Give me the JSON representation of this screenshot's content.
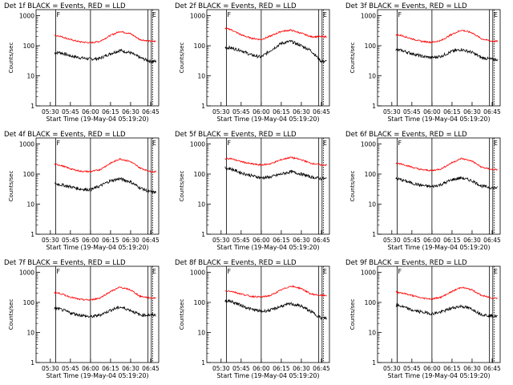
{
  "figure": {
    "ylabel": "Counts/sec",
    "xlabel_prefix": "Start Time",
    "start_time": "(19-May-04 05:19:20)",
    "x_ticks": [
      "05:30",
      "05:45",
      "06:00",
      "06:15",
      "06:30",
      "06:45"
    ],
    "y_ticks": [
      "1",
      "10",
      "100",
      "1000"
    ],
    "marker_label_F": "F",
    "marker_label_E": "E",
    "colors": {
      "events": "#000000",
      "lld": "#ff0000"
    }
  },
  "chart_data": [
    {
      "type": "line",
      "title": "Det 1f BLACK = Events, RED = LLD",
      "detector": "1f",
      "ylim": [
        1,
        1000
      ],
      "yscale": "log",
      "series": [
        {
          "name": "Events",
          "color": "#000000",
          "x": [
            "05:30",
            "05:37",
            "05:45",
            "05:52",
            "06:00",
            "06:07",
            "06:15",
            "06:22",
            "06:30",
            "06:37",
            "06:45"
          ],
          "values": [
            55,
            60,
            46,
            40,
            36,
            38,
            55,
            70,
            58,
            40,
            30
          ]
        },
        {
          "name": "LLD",
          "color": "#ff0000",
          "x": [
            "05:30",
            "05:37",
            "05:45",
            "05:52",
            "06:00",
            "06:07",
            "06:15",
            "06:22",
            "06:30",
            "06:37",
            "06:45"
          ],
          "values": [
            230,
            210,
            160,
            135,
            125,
            140,
            220,
            300,
            250,
            160,
            140
          ]
        }
      ]
    },
    {
      "type": "line",
      "title": "Det 2f BLACK = Events, RED = LLD",
      "detector": "2f",
      "ylim": [
        1,
        1000
      ],
      "yscale": "log",
      "series": [
        {
          "name": "Events",
          "color": "#000000",
          "x": [
            "05:30",
            "05:37",
            "05:45",
            "05:52",
            "06:00",
            "06:07",
            "06:15",
            "06:22",
            "06:30",
            "06:37",
            "06:45"
          ],
          "values": [
            90,
            85,
            70,
            50,
            42,
            70,
            120,
            140,
            100,
            70,
            30
          ]
        },
        {
          "name": "LLD",
          "color": "#ff0000",
          "x": [
            "05:30",
            "05:37",
            "05:45",
            "05:52",
            "06:00",
            "06:07",
            "06:15",
            "06:22",
            "06:30",
            "06:37",
            "06:45"
          ],
          "values": [
            400,
            350,
            230,
            180,
            160,
            210,
            300,
            330,
            260,
            200,
            200
          ]
        }
      ]
    },
    {
      "type": "line",
      "title": "Det 3f BLACK = Events, RED = LLD",
      "detector": "3f",
      "ylim": [
        1,
        1000
      ],
      "yscale": "log",
      "series": [
        {
          "name": "Events",
          "color": "#000000",
          "x": [
            "05:30",
            "05:37",
            "05:45",
            "05:52",
            "06:00",
            "06:07",
            "06:15",
            "06:22",
            "06:30",
            "06:37",
            "06:45"
          ],
          "values": [
            75,
            70,
            55,
            45,
            40,
            45,
            65,
            75,
            60,
            40,
            35
          ]
        },
        {
          "name": "LLD",
          "color": "#ff0000",
          "x": [
            "05:30",
            "05:37",
            "05:45",
            "05:52",
            "06:00",
            "06:07",
            "06:15",
            "06:22",
            "06:30",
            "06:37",
            "06:45"
          ],
          "values": [
            240,
            220,
            170,
            140,
            130,
            150,
            240,
            330,
            270,
            170,
            140
          ]
        }
      ]
    },
    {
      "type": "line",
      "title": "Det 4f BLACK = Events, RED = LLD",
      "detector": "4f",
      "ylim": [
        1,
        1000
      ],
      "yscale": "log",
      "series": [
        {
          "name": "Events",
          "color": "#000000",
          "x": [
            "05:30",
            "05:37",
            "05:45",
            "05:52",
            "06:00",
            "06:07",
            "06:15",
            "06:22",
            "06:30",
            "06:37",
            "06:45"
          ],
          "values": [
            50,
            45,
            38,
            32,
            30,
            40,
            60,
            70,
            55,
            35,
            25
          ]
        },
        {
          "name": "LLD",
          "color": "#ff0000",
          "x": [
            "05:30",
            "05:37",
            "05:45",
            "05:52",
            "06:00",
            "06:07",
            "06:15",
            "06:22",
            "06:30",
            "06:37",
            "06:45"
          ],
          "values": [
            220,
            200,
            150,
            125,
            120,
            140,
            230,
            320,
            260,
            160,
            120
          ]
        }
      ]
    },
    {
      "type": "line",
      "title": "Det 5f BLACK = Events, RED = LLD",
      "detector": "5f",
      "ylim": [
        1,
        1000
      ],
      "yscale": "log",
      "series": [
        {
          "name": "Events",
          "color": "#000000",
          "x": [
            "05:30",
            "05:37",
            "05:45",
            "05:52",
            "06:00",
            "06:07",
            "06:15",
            "06:22",
            "06:30",
            "06:37",
            "06:45"
          ],
          "values": [
            170,
            150,
            110,
            90,
            75,
            80,
            100,
            120,
            100,
            80,
            70
          ]
        },
        {
          "name": "LLD",
          "color": "#ff0000",
          "x": [
            "05:30",
            "05:37",
            "05:45",
            "05:52",
            "06:00",
            "06:07",
            "06:15",
            "06:22",
            "06:30",
            "06:37",
            "06:45"
          ],
          "values": [
            320,
            330,
            260,
            220,
            200,
            220,
            300,
            360,
            300,
            230,
            200
          ]
        }
      ]
    },
    {
      "type": "line",
      "title": "Det 6f BLACK = Events, RED = LLD",
      "detector": "6f",
      "ylim": [
        1,
        1000
      ],
      "yscale": "log",
      "series": [
        {
          "name": "Events",
          "color": "#000000",
          "x": [
            "05:30",
            "05:37",
            "05:45",
            "05:52",
            "06:00",
            "06:07",
            "06:15",
            "06:22",
            "06:30",
            "06:37",
            "06:45"
          ],
          "values": [
            75,
            65,
            50,
            42,
            38,
            45,
            65,
            75,
            60,
            40,
            35
          ]
        },
        {
          "name": "LLD",
          "color": "#ff0000",
          "x": [
            "05:30",
            "05:37",
            "05:45",
            "05:52",
            "06:00",
            "06:07",
            "06:15",
            "06:22",
            "06:30",
            "06:37",
            "06:45"
          ],
          "values": [
            230,
            220,
            170,
            140,
            130,
            150,
            240,
            330,
            270,
            170,
            140
          ]
        }
      ]
    },
    {
      "type": "line",
      "title": "Det 7f BLACK = Events, RED = LLD",
      "detector": "7f",
      "ylim": [
        1,
        1000
      ],
      "yscale": "log",
      "series": [
        {
          "name": "Events",
          "color": "#000000",
          "x": [
            "05:30",
            "05:37",
            "05:45",
            "05:52",
            "06:00",
            "06:07",
            "06:15",
            "06:22",
            "06:30",
            "06:37",
            "06:45"
          ],
          "values": [
            65,
            60,
            45,
            38,
            33,
            38,
            55,
            70,
            55,
            38,
            38
          ]
        },
        {
          "name": "LLD",
          "color": "#ff0000",
          "x": [
            "05:30",
            "05:37",
            "05:45",
            "05:52",
            "06:00",
            "06:07",
            "06:15",
            "06:22",
            "06:30",
            "06:37",
            "06:45"
          ],
          "values": [
            220,
            200,
            150,
            125,
            120,
            140,
            230,
            320,
            260,
            160,
            140
          ]
        }
      ]
    },
    {
      "type": "line",
      "title": "Det 8f BLACK = Events, RED = LLD",
      "detector": "8f",
      "ylim": [
        1,
        1000
      ],
      "yscale": "log",
      "series": [
        {
          "name": "Events",
          "color": "#000000",
          "x": [
            "05:30",
            "05:37",
            "05:45",
            "05:52",
            "06:00",
            "06:07",
            "06:15",
            "06:22",
            "06:30",
            "06:37",
            "06:45"
          ],
          "values": [
            120,
            110,
            80,
            60,
            50,
            55,
            75,
            90,
            75,
            50,
            30
          ]
        },
        {
          "name": "LLD",
          "color": "#ff0000",
          "x": [
            "05:30",
            "05:37",
            "05:45",
            "05:52",
            "06:00",
            "06:07",
            "06:15",
            "06:22",
            "06:30",
            "06:37",
            "06:45"
          ],
          "values": [
            230,
            240,
            190,
            160,
            150,
            170,
            260,
            350,
            290,
            190,
            170
          ]
        }
      ]
    },
    {
      "type": "line",
      "title": "Det 9f BLACK = Events, RED = LLD",
      "detector": "9f",
      "ylim": [
        1,
        1000
      ],
      "yscale": "log",
      "series": [
        {
          "name": "Events",
          "color": "#000000",
          "x": [
            "05:30",
            "05:37",
            "05:45",
            "05:52",
            "06:00",
            "06:07",
            "06:15",
            "06:22",
            "06:30",
            "06:37",
            "06:45"
          ],
          "values": [
            85,
            75,
            55,
            48,
            42,
            48,
            65,
            75,
            60,
            40,
            35
          ]
        },
        {
          "name": "LLD",
          "color": "#ff0000",
          "x": [
            "05:30",
            "05:37",
            "05:45",
            "05:52",
            "06:00",
            "06:07",
            "06:15",
            "06:22",
            "06:30",
            "06:37",
            "06:45"
          ],
          "values": [
            230,
            210,
            170,
            140,
            130,
            150,
            230,
            320,
            260,
            170,
            140
          ]
        }
      ]
    }
  ]
}
